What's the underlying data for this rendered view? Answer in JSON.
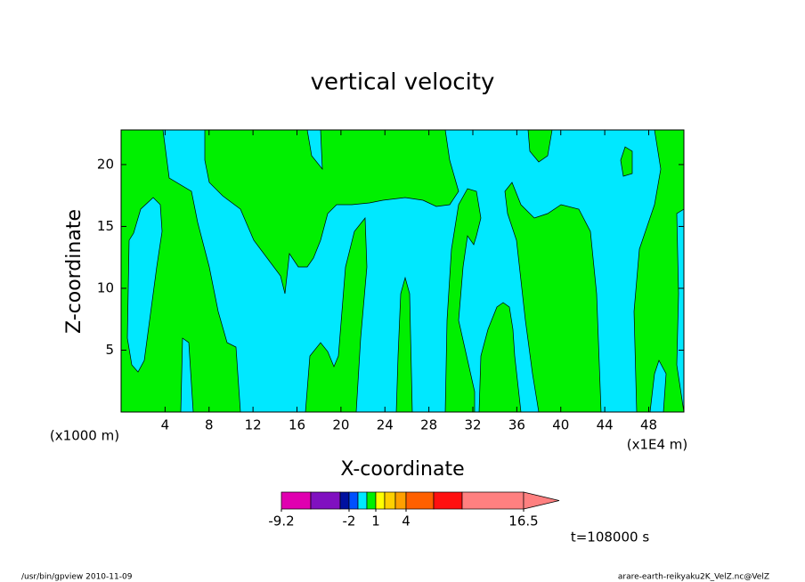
{
  "chart_data": {
    "type": "contour",
    "title": "vertical velocity",
    "xlabel": "X-coordinate",
    "ylabel": "Z-coordinate",
    "xunit": "(x1E4 m)",
    "yunit": "(x1000 m)",
    "xlim": [
      0,
      51.2
    ],
    "xticks": [
      4,
      8,
      12,
      16,
      20,
      24,
      28,
      32,
      36,
      40,
      44,
      48
    ],
    "ylim": [
      0,
      22.8
    ],
    "yticks": [
      5,
      10,
      15,
      20
    ],
    "colorbar": {
      "levels": [
        -9.2,
        -6.8,
        -4.4,
        -2,
        -1,
        0,
        1,
        2,
        3,
        4,
        8,
        12,
        16.5
      ],
      "colors": [
        "#e000b0",
        "#8010c0",
        "#0010a0",
        "#0050ff",
        "#00e8ff",
        "#00f000",
        "#ffff00",
        "#ffd000",
        "#ffa000",
        "#ff6000",
        "#ff1010",
        "#ff8080"
      ],
      "ticks": [
        -9.2,
        -2,
        1,
        4,
        16.5
      ]
    },
    "annotation": "t=108000 s",
    "footer_left": "/usr/bin/gpview   2010-11-09",
    "footer_right": "arare-earth-reikyaku2K_VelZ.nc@VelZ"
  }
}
